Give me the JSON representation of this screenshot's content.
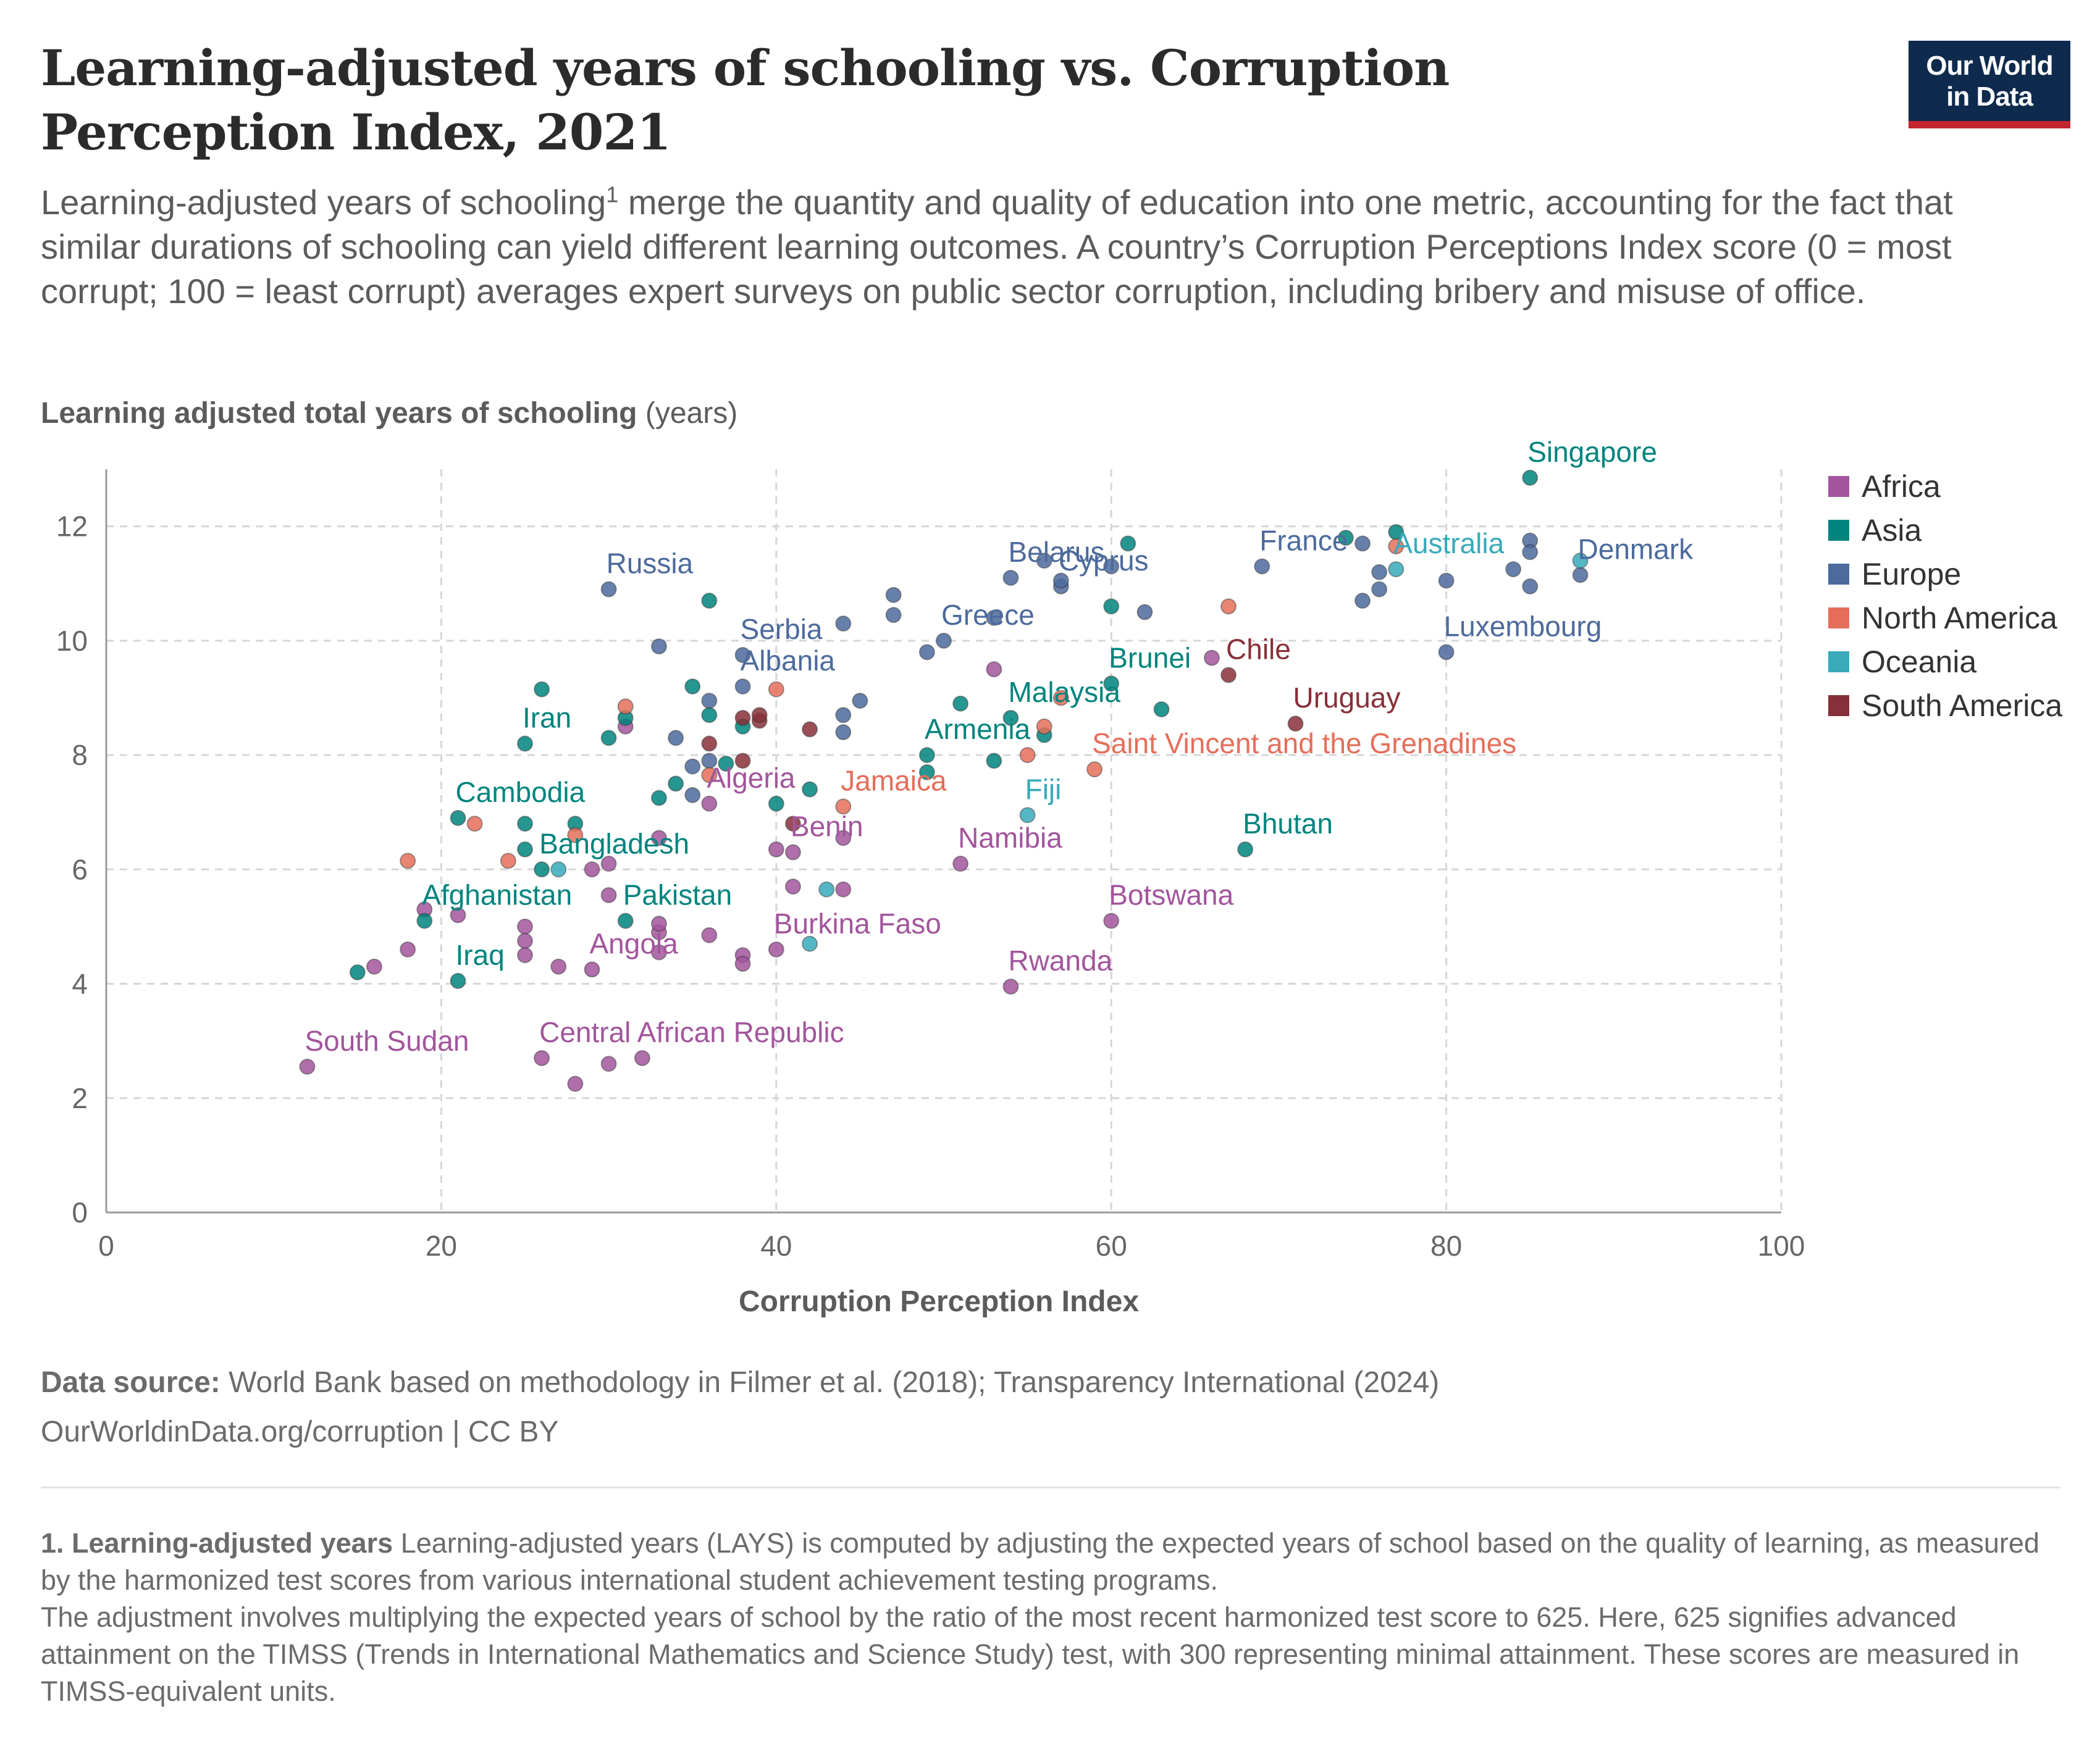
{
  "header": {
    "title": "Learning-adjusted years of schooling vs. Corruption Perception Index, 2021",
    "subtitle_part1": "Learning-adjusted years of schooling",
    "subtitle_sup": "1",
    "subtitle_part2": " merge the quantity and quality of education into one metric, accounting for the fact that similar durations of schooling can yield different learning outcomes. A country’s Corruption Perceptions Index score (0 = most corrupt; 100 = least corrupt) averages expert surveys on public sector corruption, including bribery and misuse of office."
  },
  "logo": {
    "line1": "Our World",
    "line2": "in Data"
  },
  "colors": {
    "Africa": "#a2559c",
    "Asia": "#00847e",
    "Europe": "#4c6a9c",
    "North America": "#e56e5a",
    "Oceania": "#38aaba",
    "South America": "#883039"
  },
  "chart_data": {
    "type": "scatter",
    "title": "Learning-adjusted years of schooling vs. Corruption Perception Index, 2021",
    "xlabel": "Corruption Perception Index",
    "ylabel_bold": "Learning adjusted total years of schooling",
    "ylabel_unit": "(years)",
    "xlim": [
      0,
      100
    ],
    "ylim": [
      0,
      13
    ],
    "xticks": [
      0,
      20,
      40,
      60,
      80,
      100
    ],
    "yticks": [
      0,
      2,
      4,
      6,
      8,
      10,
      12
    ],
    "grid": true,
    "legend_position": "right",
    "series": [
      {
        "name": "Africa",
        "points": [
          [
            12,
            2.55,
            "South Sudan"
          ],
          [
            16,
            4.3,
            ""
          ],
          [
            18,
            4.6,
            ""
          ],
          [
            19,
            5.3,
            ""
          ],
          [
            21,
            5.2,
            ""
          ],
          [
            25,
            5.0,
            ""
          ],
          [
            25,
            4.75,
            ""
          ],
          [
            25,
            4.5,
            ""
          ],
          [
            26,
            2.7,
            "Central African Republic"
          ],
          [
            27,
            4.3,
            ""
          ],
          [
            28,
            2.25,
            ""
          ],
          [
            29,
            4.25,
            "Angola"
          ],
          [
            29,
            6.0,
            ""
          ],
          [
            30,
            5.55,
            ""
          ],
          [
            30,
            6.1,
            ""
          ],
          [
            30,
            2.6,
            ""
          ],
          [
            31,
            8.5,
            ""
          ],
          [
            32,
            2.7,
            ""
          ],
          [
            33,
            4.9,
            ""
          ],
          [
            33,
            5.05,
            ""
          ],
          [
            33,
            4.55,
            ""
          ],
          [
            33,
            6.55,
            ""
          ],
          [
            36,
            4.85,
            ""
          ],
          [
            36,
            7.15,
            "Algeria"
          ],
          [
            38,
            4.5,
            ""
          ],
          [
            38,
            4.35,
            ""
          ],
          [
            40,
            4.6,
            "Burkina Faso"
          ],
          [
            40,
            6.35,
            ""
          ],
          [
            41,
            6.3,
            "Benin"
          ],
          [
            41,
            5.7,
            ""
          ],
          [
            44,
            5.65,
            ""
          ],
          [
            44,
            6.55,
            ""
          ],
          [
            51,
            6.1,
            "Namibia"
          ],
          [
            53,
            9.5,
            ""
          ],
          [
            54,
            3.95,
            "Rwanda"
          ],
          [
            60,
            5.1,
            "Botswana"
          ],
          [
            66,
            9.7,
            ""
          ]
        ]
      },
      {
        "name": "Asia",
        "points": [
          [
            15,
            4.2,
            ""
          ],
          [
            19,
            5.1,
            "Afghanistan"
          ],
          [
            21,
            4.05,
            "Iraq"
          ],
          [
            21,
            6.9,
            "Cambodia"
          ],
          [
            25,
            8.2,
            "Iran"
          ],
          [
            25,
            6.8,
            ""
          ],
          [
            25,
            6.35,
            ""
          ],
          [
            26,
            6.0,
            "Bangladesh"
          ],
          [
            26,
            9.15,
            ""
          ],
          [
            28,
            6.8,
            ""
          ],
          [
            30,
            8.3,
            ""
          ],
          [
            31,
            5.1,
            "Pakistan"
          ],
          [
            31,
            8.65,
            ""
          ],
          [
            33,
            7.25,
            ""
          ],
          [
            34,
            7.5,
            ""
          ],
          [
            35,
            9.2,
            ""
          ],
          [
            36,
            8.7,
            ""
          ],
          [
            36,
            10.7,
            ""
          ],
          [
            37,
            7.85,
            ""
          ],
          [
            38,
            8.5,
            ""
          ],
          [
            40,
            7.15,
            ""
          ],
          [
            42,
            7.4,
            ""
          ],
          [
            49,
            8.0,
            "Armenia"
          ],
          [
            49,
            7.7,
            ""
          ],
          [
            51,
            8.9,
            ""
          ],
          [
            53,
            7.9,
            ""
          ],
          [
            54,
            8.65,
            "Malaysia"
          ],
          [
            56,
            8.35,
            ""
          ],
          [
            60,
            9.25,
            "Brunei"
          ],
          [
            60,
            10.6,
            ""
          ],
          [
            61,
            11.7,
            ""
          ],
          [
            63,
            8.8,
            ""
          ],
          [
            68,
            6.35,
            "Bhutan"
          ],
          [
            74,
            11.8,
            ""
          ],
          [
            77,
            11.9,
            ""
          ],
          [
            85,
            12.85,
            "Singapore"
          ]
        ]
      },
      {
        "name": "Europe",
        "points": [
          [
            30,
            10.9,
            "Russia"
          ],
          [
            33,
            9.9,
            ""
          ],
          [
            34,
            8.3,
            ""
          ],
          [
            35,
            7.8,
            ""
          ],
          [
            35,
            7.3,
            ""
          ],
          [
            36,
            7.9,
            ""
          ],
          [
            36,
            8.95,
            ""
          ],
          [
            38,
            9.75,
            "Serbia"
          ],
          [
            38,
            9.2,
            "Albania"
          ],
          [
            44,
            8.7,
            ""
          ],
          [
            44,
            8.4,
            ""
          ],
          [
            44,
            10.3,
            ""
          ],
          [
            45,
            8.95,
            ""
          ],
          [
            47,
            10.8,
            ""
          ],
          [
            47,
            10.45,
            ""
          ],
          [
            49,
            9.8,
            ""
          ],
          [
            50,
            10.0,
            "Greece"
          ],
          [
            53,
            10.4,
            ""
          ],
          [
            54,
            11.1,
            "Belarus"
          ],
          [
            56,
            11.4,
            ""
          ],
          [
            57,
            10.95,
            "Cyprus"
          ],
          [
            57,
            11.05,
            ""
          ],
          [
            60,
            11.3,
            ""
          ],
          [
            62,
            10.5,
            ""
          ],
          [
            69,
            11.3,
            "France"
          ],
          [
            75,
            11.7,
            ""
          ],
          [
            75,
            10.7,
            ""
          ],
          [
            76,
            10.9,
            ""
          ],
          [
            76,
            11.2,
            ""
          ],
          [
            80,
            11.05,
            ""
          ],
          [
            80,
            9.8,
            "Luxembourg"
          ],
          [
            84,
            11.25,
            ""
          ],
          [
            85,
            11.75,
            ""
          ],
          [
            85,
            11.55,
            ""
          ],
          [
            85,
            10.95,
            ""
          ],
          [
            88,
            11.15,
            "Denmark"
          ]
        ]
      },
      {
        "name": "North America",
        "points": [
          [
            18,
            6.15,
            ""
          ],
          [
            22,
            6.8,
            ""
          ],
          [
            24,
            6.15,
            ""
          ],
          [
            28,
            6.6,
            ""
          ],
          [
            31,
            8.85,
            ""
          ],
          [
            36,
            7.65,
            ""
          ],
          [
            40,
            9.15,
            ""
          ],
          [
            44,
            7.1,
            "Jamaica"
          ],
          [
            55,
            8.0,
            ""
          ],
          [
            56,
            8.5,
            ""
          ],
          [
            57,
            9.0,
            ""
          ],
          [
            59,
            7.75,
            "Saint Vincent and the Grenadines"
          ],
          [
            67,
            10.6,
            ""
          ],
          [
            77,
            11.65,
            ""
          ]
        ]
      },
      {
        "name": "Oceania",
        "points": [
          [
            27,
            6.0,
            ""
          ],
          [
            42,
            4.7,
            ""
          ],
          [
            43,
            5.65,
            ""
          ],
          [
            55,
            6.95,
            "Fiji"
          ],
          [
            77,
            11.25,
            "Australia"
          ],
          [
            88,
            11.4,
            ""
          ]
        ]
      },
      {
        "name": "South America",
        "points": [
          [
            36,
            8.2,
            ""
          ],
          [
            38,
            7.9,
            ""
          ],
          [
            38,
            8.65,
            ""
          ],
          [
            39,
            8.6,
            ""
          ],
          [
            39,
            8.7,
            ""
          ],
          [
            41,
            6.8,
            ""
          ],
          [
            42,
            8.45,
            ""
          ],
          [
            67,
            9.4,
            "Chile"
          ],
          [
            71,
            8.55,
            "Uruguay"
          ]
        ]
      }
    ]
  },
  "footer": {
    "source_label": "Data source:",
    "source_text": " World Bank based on methodology in Filmer et al. (2018); Transparency International (2024)",
    "url_text": "OurWorldinData.org/corruption | CC BY",
    "note_label": "1. Learning-adjusted years",
    "note_text1": " Learning-adjusted years (LAYS) is computed by adjusting the expected years of school based on the quality of learning, as measured by the harmonized test scores from various international student achievement testing programs.",
    "note_text2": "The adjustment involves multiplying the expected years of school by the ratio of the most recent harmonized test score to 625. Here, 625 signifies advanced attainment on the TIMSS (Trends in International Mathematics and Science Study) test, with 300 representing minimal attainment. These scores are measured in TIMSS-equivalent units."
  }
}
